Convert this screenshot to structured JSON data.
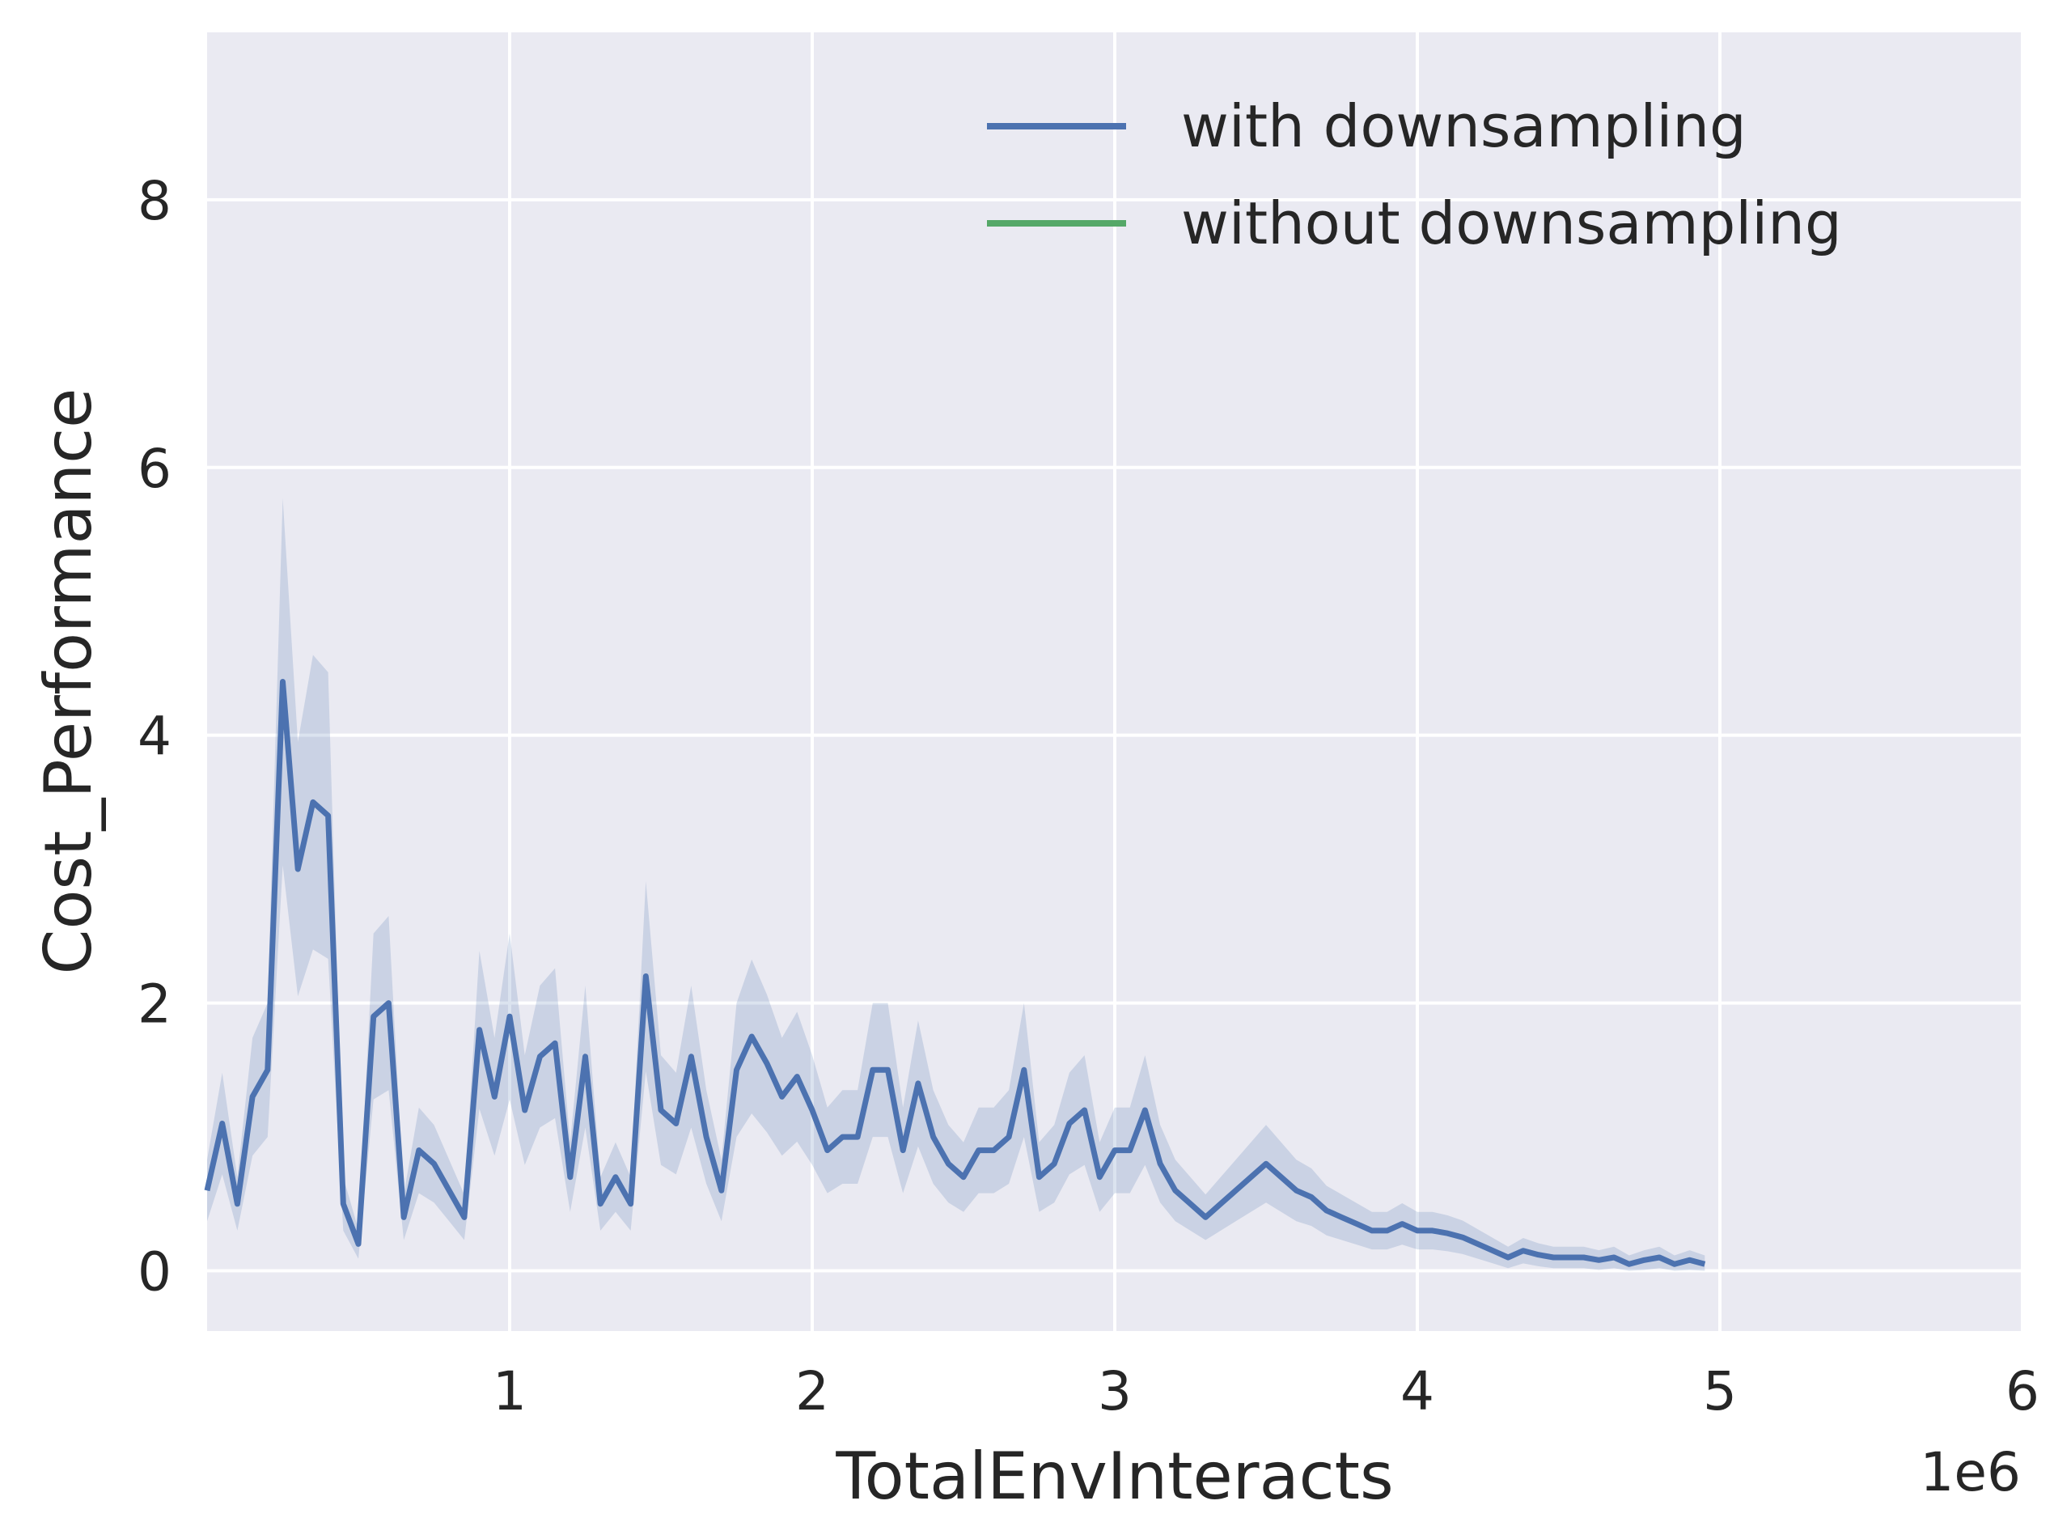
{
  "chart_data": {
    "type": "line",
    "title": "",
    "xlabel": "TotalEnvInteracts",
    "ylabel": "Cost_Performance",
    "x_offset_label": "1e6",
    "xlim": [
      0.0,
      6.0
    ],
    "ylim": [
      -0.45,
      9.25
    ],
    "xticks": [
      1,
      2,
      3,
      4,
      5,
      6
    ],
    "xtick_labels": [
      "1",
      "2",
      "3",
      "4",
      "5",
      "6"
    ],
    "yticks": [
      0,
      2,
      4,
      6,
      8
    ],
    "ytick_labels": [
      "0",
      "2",
      "4",
      "6",
      "8"
    ],
    "grid": true,
    "legend_position": "top-right",
    "background": "#eaeaf2",
    "series": [
      {
        "name": "with downsampling",
        "color": "#4c72b0",
        "points": [
          [
            0.0,
            0.6
          ],
          [
            0.05,
            1.1
          ],
          [
            0.1,
            0.5
          ],
          [
            0.15,
            1.3
          ],
          [
            0.2,
            1.5
          ],
          [
            0.25,
            4.4
          ],
          [
            0.3,
            3.0
          ],
          [
            0.35,
            3.5
          ],
          [
            0.4,
            3.4
          ],
          [
            0.45,
            0.5
          ],
          [
            0.5,
            0.2
          ],
          [
            0.55,
            1.9
          ],
          [
            0.6,
            2.0
          ],
          [
            0.65,
            0.4
          ],
          [
            0.7,
            0.9
          ],
          [
            0.75,
            0.8
          ],
          [
            0.8,
            0.6
          ],
          [
            0.85,
            0.4
          ],
          [
            0.9,
            1.8
          ],
          [
            0.95,
            1.3
          ],
          [
            1.0,
            1.9
          ],
          [
            1.05,
            1.2
          ],
          [
            1.1,
            1.6
          ],
          [
            1.15,
            1.7
          ],
          [
            1.2,
            0.7
          ],
          [
            1.25,
            1.6
          ],
          [
            1.3,
            0.5
          ],
          [
            1.35,
            0.7
          ],
          [
            1.4,
            0.5
          ],
          [
            1.45,
            2.2
          ],
          [
            1.5,
            1.2
          ],
          [
            1.55,
            1.1
          ],
          [
            1.6,
            1.6
          ],
          [
            1.65,
            1.0
          ],
          [
            1.7,
            0.6
          ],
          [
            1.75,
            1.5
          ],
          [
            1.8,
            1.75
          ],
          [
            1.85,
            1.55
          ],
          [
            1.9,
            1.3
          ],
          [
            1.95,
            1.45
          ],
          [
            2.0,
            1.2
          ],
          [
            2.05,
            0.9
          ],
          [
            2.1,
            1.0
          ],
          [
            2.15,
            1.0
          ],
          [
            2.2,
            1.5
          ],
          [
            2.25,
            1.5
          ],
          [
            2.3,
            0.9
          ],
          [
            2.35,
            1.4
          ],
          [
            2.4,
            1.0
          ],
          [
            2.45,
            0.8
          ],
          [
            2.5,
            0.7
          ],
          [
            2.55,
            0.9
          ],
          [
            2.6,
            0.9
          ],
          [
            2.65,
            1.0
          ],
          [
            2.7,
            1.5
          ],
          [
            2.75,
            0.7
          ],
          [
            2.8,
            0.8
          ],
          [
            2.85,
            1.1
          ],
          [
            2.9,
            1.2
          ],
          [
            2.95,
            0.7
          ],
          [
            3.0,
            0.9
          ],
          [
            3.05,
            0.9
          ],
          [
            3.1,
            1.2
          ],
          [
            3.15,
            0.8
          ],
          [
            3.2,
            0.6
          ],
          [
            3.25,
            0.5
          ],
          [
            3.3,
            0.4
          ],
          [
            3.35,
            0.5
          ],
          [
            3.4,
            0.6
          ],
          [
            3.45,
            0.7
          ],
          [
            3.5,
            0.8
          ],
          [
            3.55,
            0.7
          ],
          [
            3.6,
            0.6
          ],
          [
            3.65,
            0.55
          ],
          [
            3.7,
            0.45
          ],
          [
            3.75,
            0.4
          ],
          [
            3.8,
            0.35
          ],
          [
            3.85,
            0.3
          ],
          [
            3.9,
            0.3
          ],
          [
            3.95,
            0.35
          ],
          [
            4.0,
            0.3
          ],
          [
            4.05,
            0.3
          ],
          [
            4.1,
            0.28
          ],
          [
            4.15,
            0.25
          ],
          [
            4.2,
            0.2
          ],
          [
            4.25,
            0.15
          ],
          [
            4.3,
            0.1
          ],
          [
            4.35,
            0.15
          ],
          [
            4.4,
            0.12
          ],
          [
            4.45,
            0.1
          ],
          [
            4.5,
            0.1
          ],
          [
            4.55,
            0.1
          ],
          [
            4.6,
            0.08
          ],
          [
            4.65,
            0.1
          ],
          [
            4.7,
            0.05
          ],
          [
            4.75,
            0.08
          ],
          [
            4.8,
            0.1
          ],
          [
            4.85,
            0.05
          ],
          [
            4.9,
            0.08
          ],
          [
            4.95,
            0.05
          ]
        ],
        "points_source_note": ""
      }
    ]
  },
  "legend": {
    "entries": [
      {
        "label": "with downsampling",
        "color": "#4c72b0"
      },
      {
        "label": "without downsampling",
        "color": "#55a868"
      }
    ]
  }
}
